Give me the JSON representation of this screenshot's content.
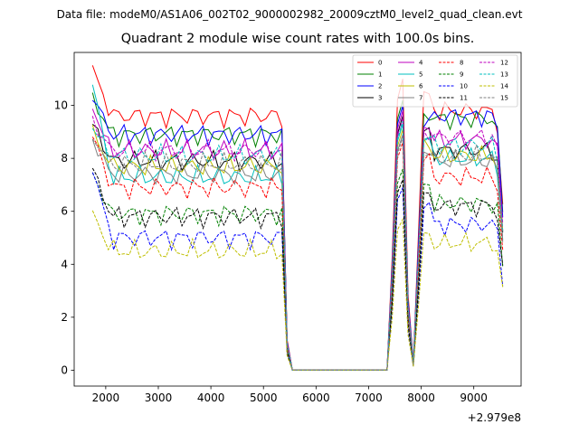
{
  "suptitle": "Data file: modeM0/AS1A06_002T02_9000002982_20009cztM0_level2_quad_clean.evt",
  "chart_data": {
    "type": "line",
    "title": "Quadrant 2 module wise count rates with 100.0s bins.",
    "xlabel": "",
    "ylabel": "",
    "x_offset_label": "+2.979e8",
    "xlim": [
      1400,
      9900
    ],
    "ylim": [
      -0.6,
      12.0
    ],
    "xticks": [
      2000,
      3000,
      4000,
      5000,
      6000,
      7000,
      8000,
      9000
    ],
    "yticks": [
      0,
      2,
      4,
      6,
      8,
      10
    ],
    "legend_position": "top-right",
    "x": [
      1750,
      1850,
      1950,
      2050,
      2150,
      2250,
      2350,
      2450,
      2550,
      2650,
      2750,
      2850,
      2950,
      3050,
      3150,
      3250,
      3350,
      3450,
      3550,
      3650,
      3750,
      3850,
      3950,
      4050,
      4150,
      4250,
      4350,
      4450,
      4550,
      4650,
      4750,
      4850,
      4950,
      5050,
      5150,
      5250,
      5350,
      5450,
      5550,
      5650,
      5750,
      5850,
      5950,
      6050,
      6150,
      6250,
      6350,
      6450,
      6550,
      6650,
      6750,
      6850,
      6950,
      7050,
      7150,
      7250,
      7350,
      7450,
      7550,
      7650,
      7750,
      7850,
      7950,
      8050,
      8150,
      8250,
      8350,
      8450,
      8550,
      8650,
      8750,
      8850,
      8950,
      9050,
      9150,
      9250,
      9350,
      9450,
      9550
    ],
    "series": [
      {
        "name": "0",
        "color": "#ff0000",
        "dash": "solid",
        "base": 9.6,
        "head": 11.4,
        "peak": 11.0,
        "post": 9.8
      },
      {
        "name": "1",
        "color": "#008000",
        "dash": "solid",
        "base": 8.9,
        "head": 10.3,
        "peak": 10.2,
        "post": 9.5
      },
      {
        "name": "2",
        "color": "#0000ff",
        "dash": "solid",
        "base": 8.9,
        "head": 10.4,
        "peak": 10.0,
        "post": 9.6
      },
      {
        "name": "3",
        "color": "#000000",
        "dash": "solid",
        "base": 7.9,
        "head": 9.3,
        "peak": 9.6,
        "post": 8.3
      },
      {
        "name": "4",
        "color": "#bf00bf",
        "dash": "solid",
        "base": 8.3,
        "head": 9.9,
        "peak": 9.8,
        "post": 8.7
      },
      {
        "name": "5",
        "color": "#00bfbf",
        "dash": "solid",
        "base": 7.3,
        "head": 10.9,
        "peak": 9.3,
        "post": 8.0
      },
      {
        "name": "6",
        "color": "#bfbf00",
        "dash": "solid",
        "base": 7.7,
        "head": 9.0,
        "peak": 9.1,
        "post": 8.1
      },
      {
        "name": "7",
        "color": "#808080",
        "dash": "solid",
        "base": 7.4,
        "head": 8.7,
        "peak": 8.9,
        "post": 7.9
      },
      {
        "name": "8",
        "color": "#ff0000",
        "dash": "dashed",
        "base": 6.9,
        "head": 8.9,
        "peak": 8.6,
        "post": 7.3
      },
      {
        "name": "9",
        "color": "#008000",
        "dash": "dashed",
        "base": 5.9,
        "head": 7.4,
        "peak": 7.6,
        "post": 6.3
      },
      {
        "name": "10",
        "color": "#0000ff",
        "dash": "dashed",
        "base": 5.0,
        "head": 7.7,
        "peak": 6.9,
        "post": 5.5
      },
      {
        "name": "11",
        "color": "#000000",
        "dash": "dashed",
        "base": 5.8,
        "head": 7.6,
        "peak": 7.2,
        "post": 6.2
      },
      {
        "name": "12",
        "color": "#bf00bf",
        "dash": "dashed",
        "base": 8.3,
        "head": 9.4,
        "peak": 9.5,
        "post": 8.8
      },
      {
        "name": "13",
        "color": "#00bfbf",
        "dash": "dashed",
        "base": 8.1,
        "head": 9.2,
        "peak": 9.4,
        "post": 8.5
      },
      {
        "name": "14",
        "color": "#bfbf00",
        "dash": "dashed",
        "base": 4.5,
        "head": 5.9,
        "peak": 5.7,
        "post": 4.8
      },
      {
        "name": "15",
        "color": "#808080",
        "dash": "dashed",
        "base": 7.8,
        "head": 8.8,
        "peak": 8.8,
        "post": 8.1
      }
    ]
  }
}
